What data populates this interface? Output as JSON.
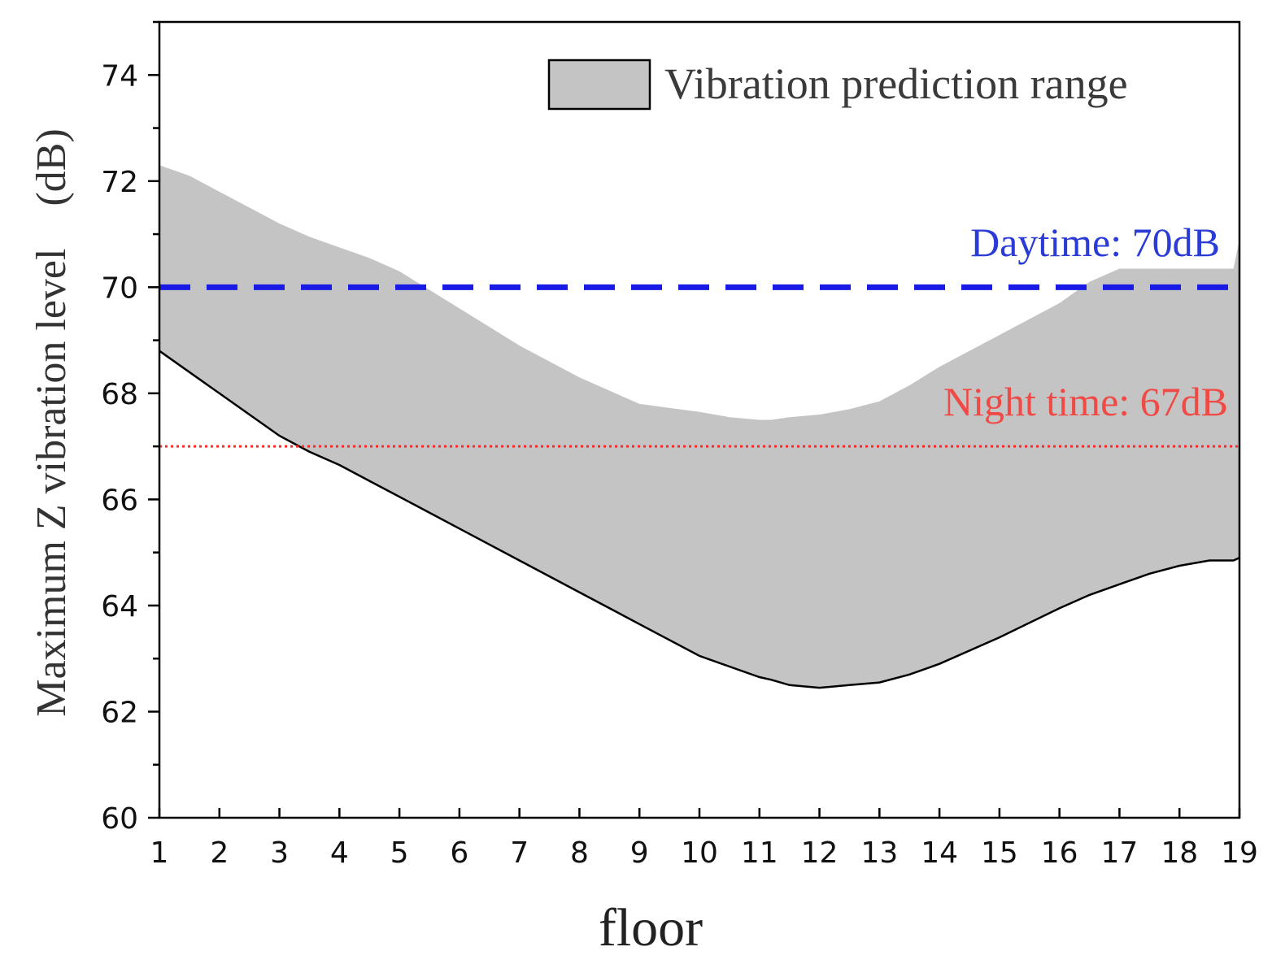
{
  "chart_data": {
    "type": "area",
    "title": "",
    "xlabel": "floor",
    "ylabel": "Maximum Z vibration level　(dB)",
    "xlim": [
      1,
      19
    ],
    "ylim": [
      60,
      75
    ],
    "x_ticks": [
      1,
      2,
      3,
      4,
      5,
      6,
      7,
      8,
      9,
      10,
      11,
      12,
      13,
      14,
      15,
      16,
      17,
      18,
      19
    ],
    "y_ticks": [
      60,
      62,
      64,
      66,
      68,
      70,
      72,
      74
    ],
    "grid": false,
    "legend": {
      "position": "top-right",
      "entries": [
        "Vibration prediction range"
      ]
    },
    "series": [
      {
        "name": "Vibration prediction range",
        "kind": "band",
        "color": "#c4c4c4",
        "x": [
          1,
          1.5,
          2,
          2.5,
          3,
          3.5,
          4,
          4.5,
          5,
          6,
          7,
          8,
          9,
          10,
          10.5,
          11,
          11.2,
          11.5,
          12,
          12.5,
          13,
          13.5,
          14,
          15,
          16,
          16.5,
          17,
          17.5,
          18,
          18.5,
          18.9,
          19
        ],
        "upper": [
          72.3,
          72.1,
          71.8,
          71.5,
          71.2,
          70.95,
          70.75,
          70.55,
          70.3,
          69.6,
          68.9,
          68.3,
          67.8,
          67.65,
          67.55,
          67.5,
          67.5,
          67.55,
          67.6,
          67.7,
          67.85,
          68.15,
          68.5,
          69.1,
          69.7,
          70.1,
          70.35,
          70.35,
          70.35,
          70.35,
          70.35,
          70.9
        ],
        "lower": [
          68.8,
          68.4,
          68.0,
          67.6,
          67.2,
          66.9,
          66.65,
          66.35,
          66.05,
          65.45,
          64.85,
          64.25,
          63.65,
          63.05,
          62.85,
          62.65,
          62.6,
          62.5,
          62.45,
          62.5,
          62.55,
          62.7,
          62.9,
          63.4,
          63.95,
          64.2,
          64.4,
          64.6,
          64.75,
          64.85,
          64.85,
          64.9
        ]
      }
    ],
    "reference_lines": [
      {
        "name": "daytime",
        "label": "Daytime: 70dB",
        "value": 70,
        "color": "#1a1ae6",
        "style": "dashed"
      },
      {
        "name": "night",
        "label": "Night time: 67dB",
        "value": 67,
        "color": "#ff2a2a",
        "style": "dotted"
      }
    ]
  }
}
